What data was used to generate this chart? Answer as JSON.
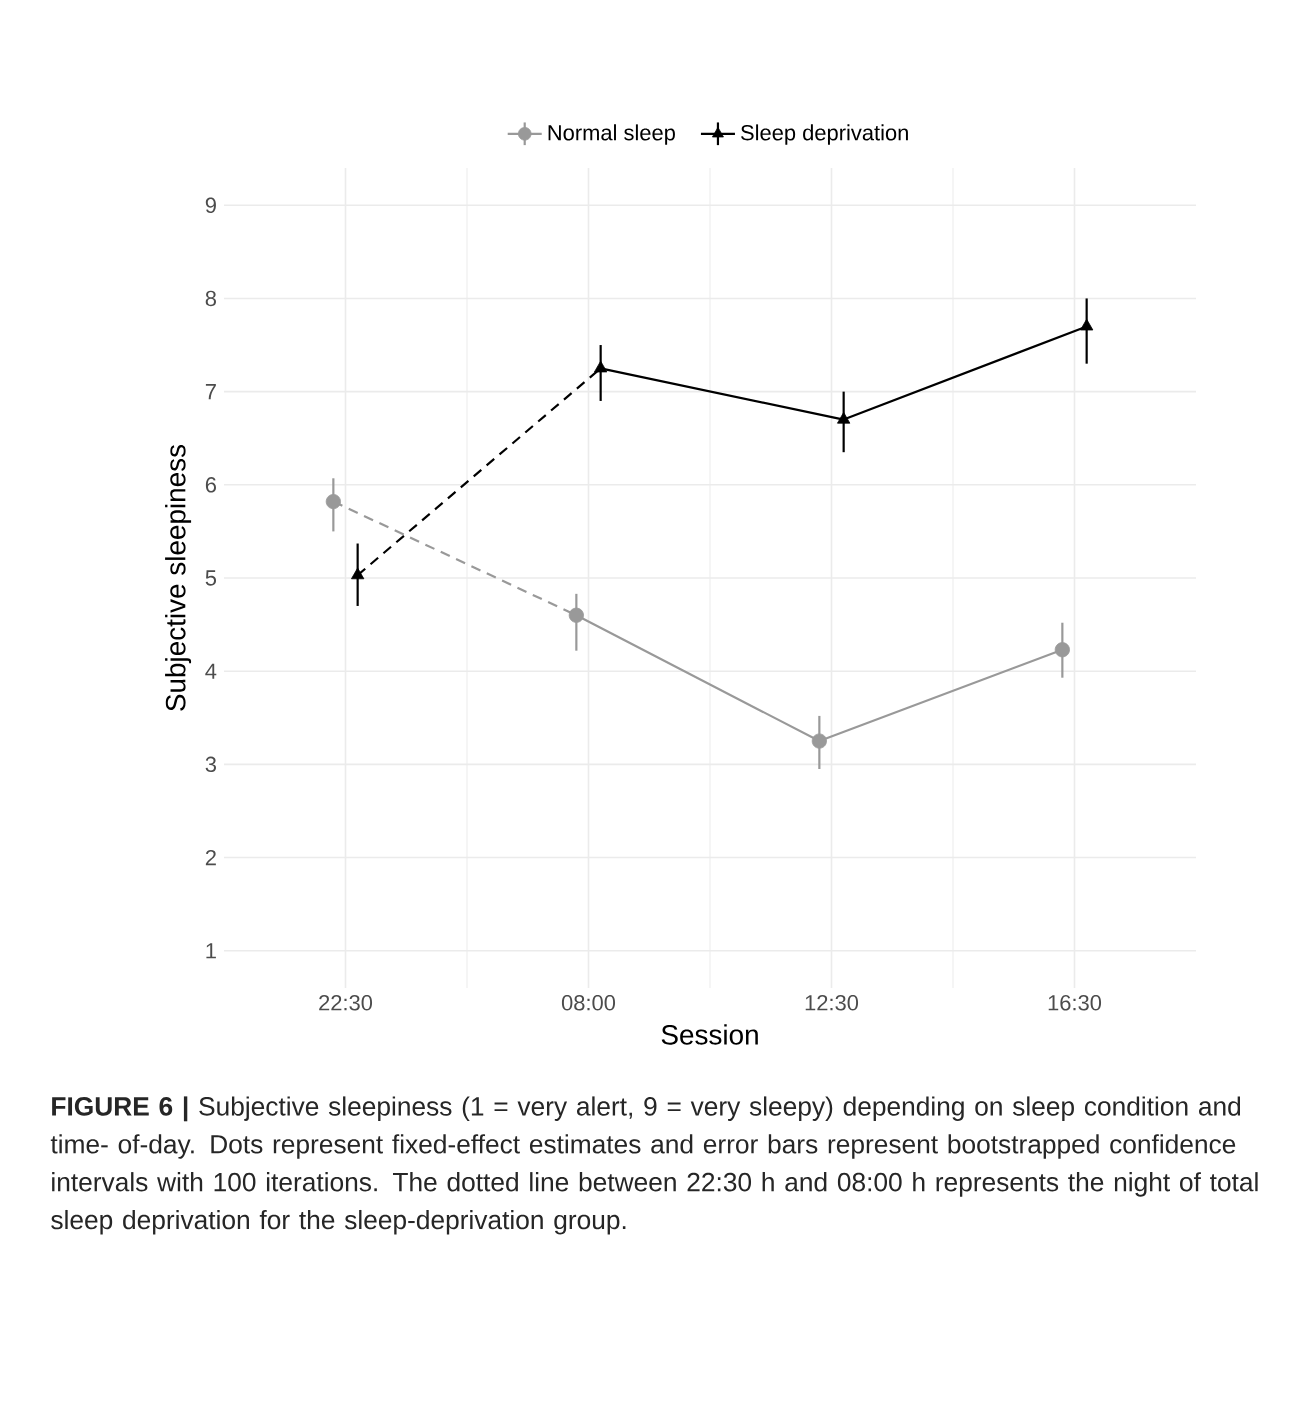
{
  "chart_data": {
    "type": "scatter",
    "xlabel": "Session",
    "ylabel": "Subjective sleepiness",
    "categories": [
      "22:30",
      "08:00",
      "12:30",
      "16:30"
    ],
    "series": [
      {
        "name": "Normal sleep",
        "color": "#999999",
        "marker": "circle",
        "values": [
          5.82,
          4.6,
          3.25,
          4.23
        ],
        "errors": [
          [
            5.5,
            6.07
          ],
          [
            4.22,
            4.83
          ],
          [
            2.95,
            3.52
          ],
          [
            3.93,
            4.52
          ]
        ]
      },
      {
        "name": "Sleep deprivation",
        "color": "#000000",
        "marker": "triangle",
        "values": [
          5.03,
          7.25,
          6.7,
          7.7
        ],
        "errors": [
          [
            4.7,
            5.37
          ],
          [
            6.9,
            7.5
          ],
          [
            6.35,
            7.0
          ],
          [
            7.3,
            8.0
          ]
        ]
      },
      {
        "type": "line",
        "color": "#999999",
        "line_style": "dashed",
        "marker": "none",
        "values": [
          5.82,
          4.6,
          null,
          null
        ]
      },
      {
        "type": "line",
        "color": "#999999",
        "line_style": "solid",
        "marker": "none",
        "values": [
          null,
          4.6,
          3.25,
          4.23
        ]
      },
      {
        "type": "line",
        "color": "#000000",
        "line_style": "dashed",
        "marker": "none",
        "values": [
          5.03,
          7.25,
          null,
          null
        ]
      },
      {
        "type": "line",
        "color": "#000000",
        "line_style": "solid",
        "marker": "none",
        "values": [
          null,
          7.25,
          6.7,
          7.7
        ]
      }
    ],
    "ylim": [
      0.6,
      9.4
    ],
    "yticks": [
      1,
      2,
      3,
      4,
      5,
      6,
      7,
      8,
      9
    ],
    "grid": true,
    "legend": "top",
    "annotations": [
      "**FIGURE 6  |** Subjective sleepiness (1 = very alert, 9 = very sleepy) depending on sleep condition and time- of-day. Dots represent fixed-effect estimates and error bars represent bootstrapped confidence intervals with 100 iterations. The dotted line between 22:30 h and 08:00 h represents the night of total sleep deprivation for the sleep-deprivation group."
    ]
  }
}
